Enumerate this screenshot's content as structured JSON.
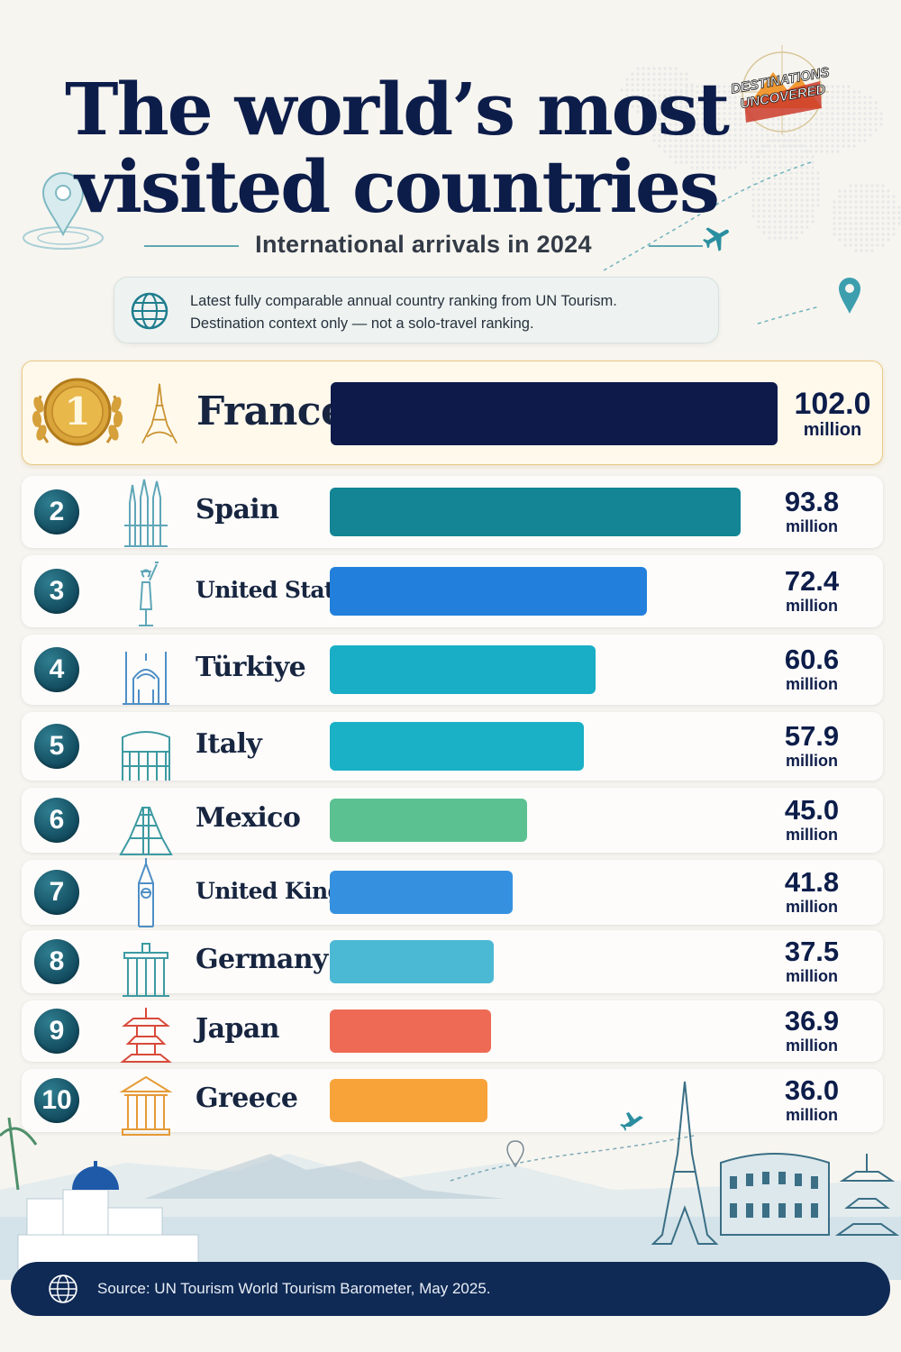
{
  "title_line1": "The world’s most",
  "title_line2": "visited countries",
  "subtitle": "International arrivals in 2024",
  "note": {
    "line1": "Latest fully comparable annual country ranking from UN Tourism.",
    "line2": "Destination context only — not a solo-travel ranking."
  },
  "logo": {
    "line1": "DESTINATIONS",
    "line2": "UNCOVERED"
  },
  "unit_label": "million",
  "source": "Source: UN Tourism World Tourism Barometer, May 2025.",
  "chart_data": {
    "type": "bar",
    "orientation": "horizontal",
    "categories": [
      "France",
      "Spain",
      "United States",
      "Türkiye",
      "Italy",
      "Mexico",
      "United Kingdom",
      "Germany",
      "Japan",
      "Greece"
    ],
    "ranks": [
      "1",
      "2",
      "3",
      "4",
      "5",
      "6",
      "7",
      "8",
      "9",
      "10"
    ],
    "values": [
      102.0,
      93.8,
      72.4,
      60.6,
      57.9,
      45.0,
      41.8,
      37.5,
      36.9,
      36.0
    ],
    "value_labels": [
      "102.0",
      "93.8",
      "72.4",
      "60.6",
      "57.9",
      "45.0",
      "41.8",
      "37.5",
      "36.9",
      "36.0"
    ],
    "landmark_icons": [
      "eiffel-tower-icon",
      "sagrada-familia-icon",
      "statue-of-liberty-icon",
      "blue-mosque-icon",
      "colosseum-icon",
      "chichen-itza-pyramid-icon",
      "big-ben-icon",
      "brandenburg-gate-icon",
      "japanese-pagoda-icon",
      "greek-temple-icon"
    ],
    "colors": [
      "#0d1a4a",
      "#138595",
      "#2280dc",
      "#1aaec6",
      "#1ab0c6",
      "#5cc191",
      "#3591e0",
      "#4cb9d4",
      "#ee6a55",
      "#f8a23a"
    ],
    "xlim": [
      0,
      102.0
    ],
    "grid": false,
    "legend": "none"
  }
}
